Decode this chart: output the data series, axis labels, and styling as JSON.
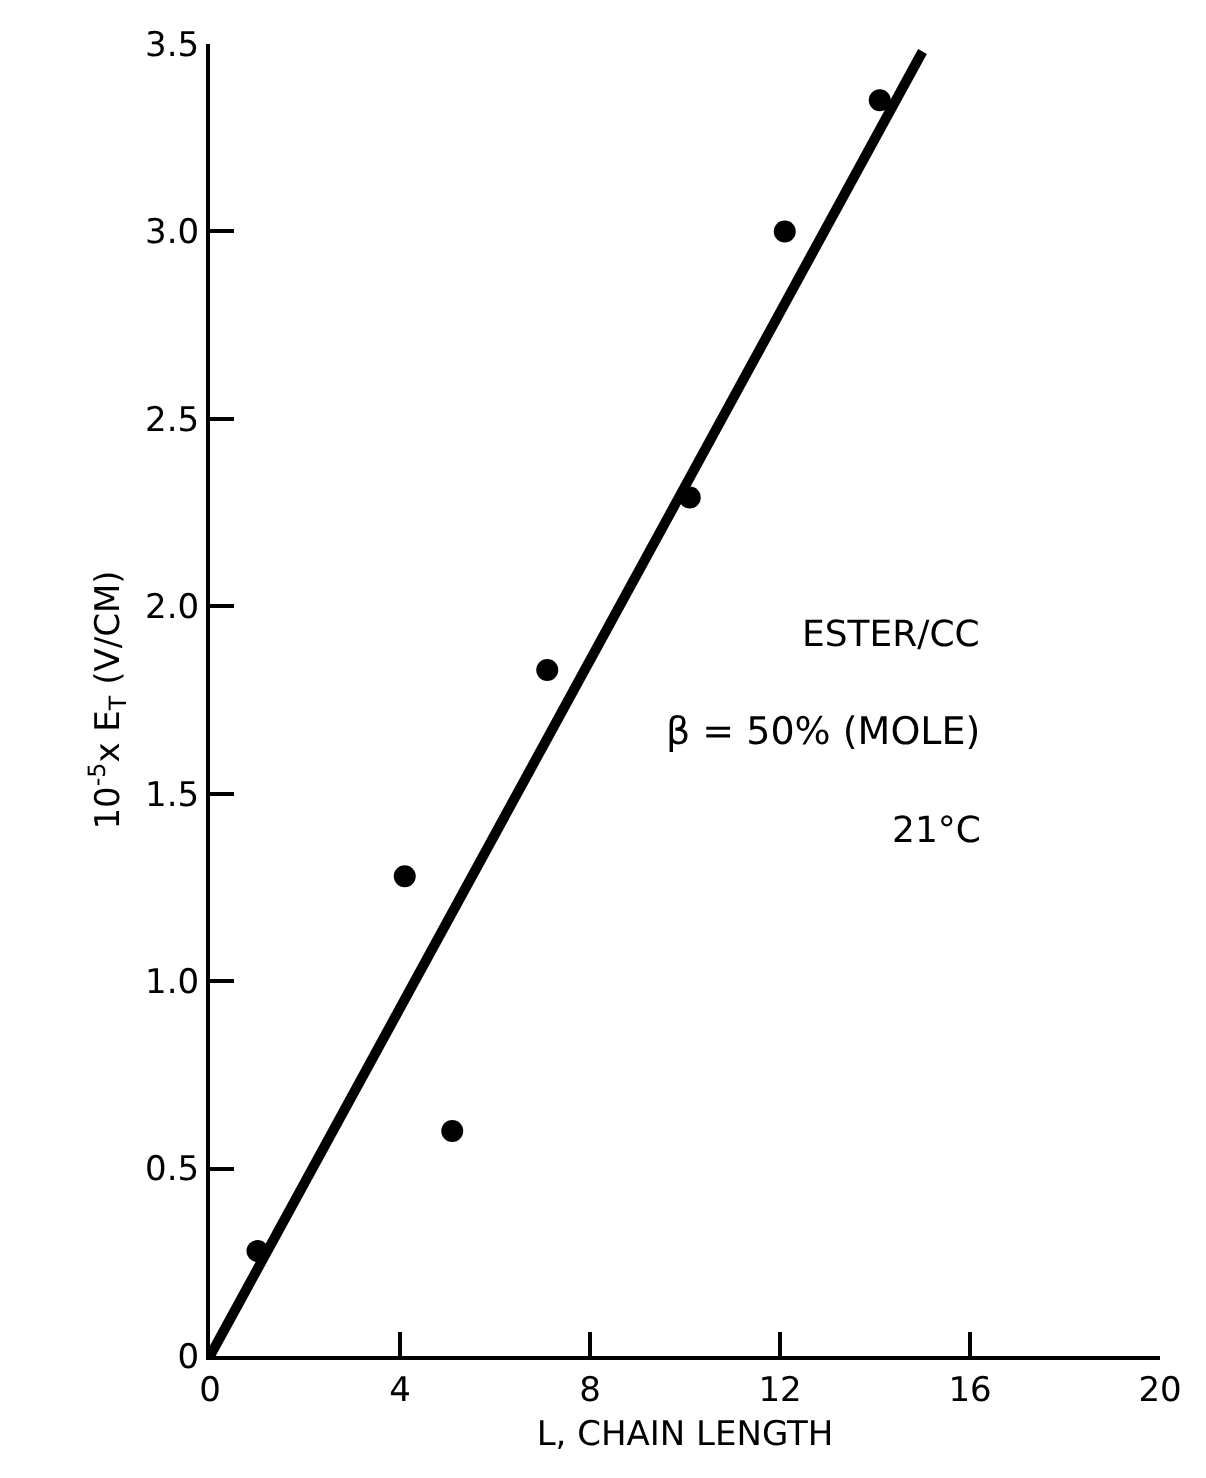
{
  "chart_data": {
    "type": "scatter",
    "xlabel": "L, CHAIN LENGTH",
    "ylabel": "10$^{-5}$x E$_{T}$ (V/CM)",
    "annotations": [
      "ESTER/CC",
      "β = 50% (MOLE)",
      "21°C"
    ],
    "series": [
      {
        "color": "#000000",
        "x": [
          1,
          4.1,
          5.1,
          7.1,
          10.1,
          12.1,
          14.1
        ],
        "values": [
          0.28,
          1.28,
          0.6,
          1.83,
          2.29,
          3.0,
          3.35
        ]
      },
      {
        "type": "line",
        "marker": "none",
        "color": "#000000",
        "x": [
          0,
          15
        ],
        "values": [
          0,
          3.48
        ]
      }
    ],
    "xlim": [
      0,
      20
    ],
    "xticks": [
      0,
      4,
      8,
      12,
      16,
      20
    ],
    "ylim": [
      0,
      3.5
    ],
    "yticks": [
      0,
      {
        "value": 0.5,
        "label": "0.5"
      },
      {
        "value": 1,
        "label": "1.0"
      },
      {
        "value": 1.5,
        "label": "1.5"
      },
      {
        "value": 2,
        "label": "2.0"
      },
      {
        "value": 2.5,
        "label": "2.5"
      },
      {
        "value": 3,
        "label": "3.0"
      },
      {
        "value": 3.5,
        "label": "3.5"
      }
    ],
    "grid": false,
    "legend": false,
    "marker": "circle",
    "line_style": "solid"
  }
}
